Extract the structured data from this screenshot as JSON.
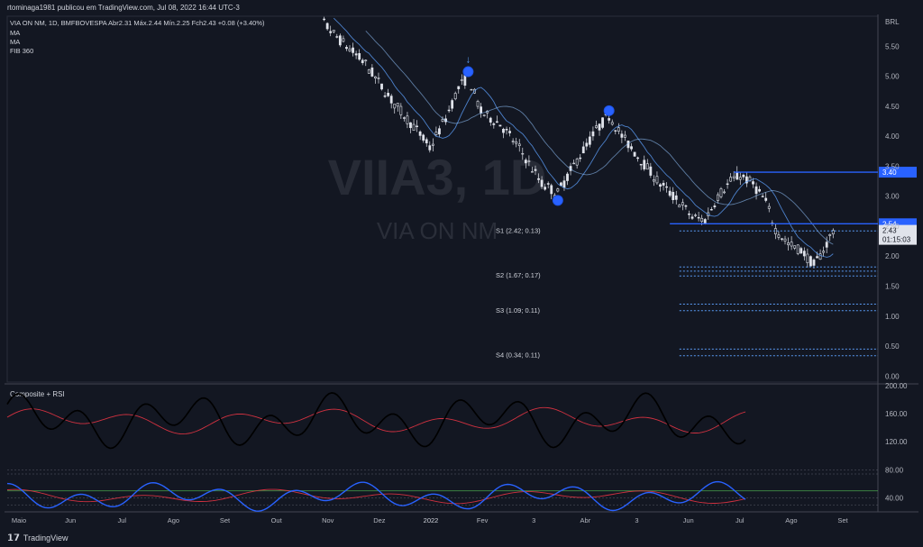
{
  "header": {
    "text": "rtominaga1981 publicou em TradingView.com, Jul 08, 2022 16:44 UTC-3"
  },
  "footer": {
    "logo": "𝟭𝟳",
    "text": "TradingView"
  },
  "chart_data": {
    "type": "candlestick",
    "symbol_line": "VIA ON NM, 1D, BMFBOVESPA  Abr2.31  Máx.2.44  Mín.2.25  Fch2.43  +0.08 (+3.40%)",
    "legend": [
      "MA",
      "MA",
      "FIB 360"
    ],
    "watermark_symbol": "VIIA3, 1D",
    "watermark_name": "VIA ON NM",
    "currency": "BRL",
    "price_axis": {
      "ticks": [
        "5.50",
        "5.00",
        "4.50",
        "4.00",
        "3.50",
        "3.00",
        "2.50",
        "2.00",
        "1.50",
        "1.00",
        "0.50",
        "0.00"
      ],
      "range": [
        -0.1,
        6.0
      ]
    },
    "time_axis": [
      "Maio",
      "Jun",
      "Jul",
      "Ago",
      "Set",
      "Out",
      "Nov",
      "Dez",
      "2022",
      "Fev",
      "3",
      "Abr",
      "3",
      "Jun",
      "Jul",
      "Ago",
      "Set"
    ],
    "price_path": [
      [
        0,
        6.3
      ],
      [
        10,
        5.7
      ],
      [
        20,
        5.2
      ],
      [
        28,
        4.6
      ],
      [
        36,
        4.1
      ],
      [
        40,
        3.8
      ],
      [
        45,
        4.3
      ],
      [
        49,
        4.8
      ],
      [
        52,
        5.0
      ],
      [
        56,
        4.4
      ],
      [
        62,
        4.2
      ],
      [
        68,
        3.8
      ],
      [
        75,
        3.2
      ],
      [
        80,
        3.05
      ],
      [
        86,
        3.6
      ],
      [
        92,
        4.1
      ],
      [
        96,
        4.35
      ],
      [
        100,
        4.0
      ],
      [
        106,
        3.6
      ],
      [
        112,
        3.2
      ],
      [
        118,
        2.9
      ],
      [
        122,
        2.65
      ],
      [
        126,
        2.6
      ],
      [
        130,
        3.0
      ],
      [
        134,
        3.25
      ],
      [
        137,
        3.35
      ],
      [
        141,
        3.2
      ],
      [
        145,
        2.9
      ],
      [
        148,
        2.45
      ],
      [
        152,
        2.2
      ],
      [
        156,
        2.1
      ],
      [
        160,
        1.85
      ],
      [
        163,
        2.1
      ],
      [
        166,
        2.43
      ]
    ],
    "markers": [
      {
        "type": "peak",
        "price": 5.0
      },
      {
        "type": "trough",
        "price": 3.05
      },
      {
        "type": "peak",
        "price": 4.35
      }
    ],
    "horizontal_lines": [
      {
        "price": 3.4,
        "label": "3.40",
        "style": "solid"
      },
      {
        "price": 2.54,
        "label": "2.54",
        "style": "solid"
      }
    ],
    "current_price": {
      "value": "2.43",
      "countdown": "01:15:03"
    },
    "pivots": [
      {
        "label": "S1 (2.42; 0.13)",
        "prices": [
          2.42
        ]
      },
      {
        "label": "S2 (1.67; 0.17)",
        "prices": [
          1.82,
          1.75,
          1.67
        ]
      },
      {
        "label": "S3 (1.09; 0.11)",
        "prices": [
          1.2,
          1.09
        ]
      },
      {
        "label": "S4 (0.34; 0.11)",
        "prices": [
          0.45,
          0.34
        ]
      }
    ],
    "indicator": {
      "title": "Composite + RSI",
      "axis_ticks": [
        "200.00",
        "160.00",
        "120.00",
        "80.00",
        "40.00"
      ],
      "range": [
        20,
        200
      ]
    }
  }
}
